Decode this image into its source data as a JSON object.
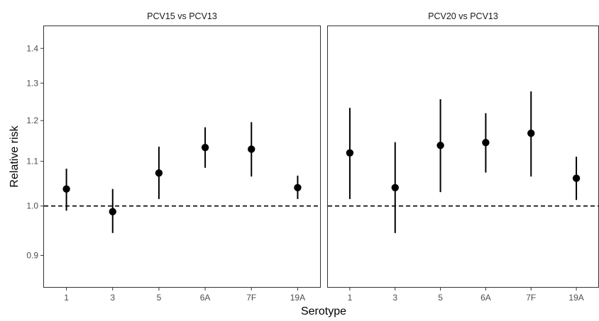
{
  "chart_data": {
    "type": "scatter",
    "ylabel": "Relative risk",
    "xlabel": "Serotype",
    "y_scale": "log",
    "ylim": [
      0.84,
      1.47
    ],
    "yticks": [
      0.9,
      1.0,
      1.1,
      1.2,
      1.3,
      1.4
    ],
    "ytick_labels": [
      "0.9",
      "1.0",
      "1.1",
      "1.2",
      "1.3",
      "1.4"
    ],
    "reference_line": {
      "y": 1.0,
      "style": "dashed"
    },
    "grid": false,
    "categories": [
      "1",
      "3",
      "5",
      "6A",
      "7F",
      "19A"
    ],
    "panels": [
      {
        "title": "PCV15 vs PCV13",
        "estimates": [
          1.037,
          0.988,
          1.073,
          1.133,
          1.129,
          1.04
        ],
        "lower": [
          0.99,
          0.944,
          1.015,
          1.085,
          1.065,
          1.015
        ],
        "upper": [
          1.083,
          1.037,
          1.135,
          1.183,
          1.196,
          1.067
        ]
      },
      {
        "title": "PCV20 vs PCV13",
        "estimates": [
          1.12,
          1.04,
          1.138,
          1.145,
          1.168,
          1.061
        ],
        "lower": [
          1.015,
          0.944,
          1.03,
          1.074,
          1.065,
          1.013
        ],
        "upper": [
          1.233,
          1.146,
          1.256,
          1.219,
          1.277,
          1.111
        ]
      }
    ]
  }
}
